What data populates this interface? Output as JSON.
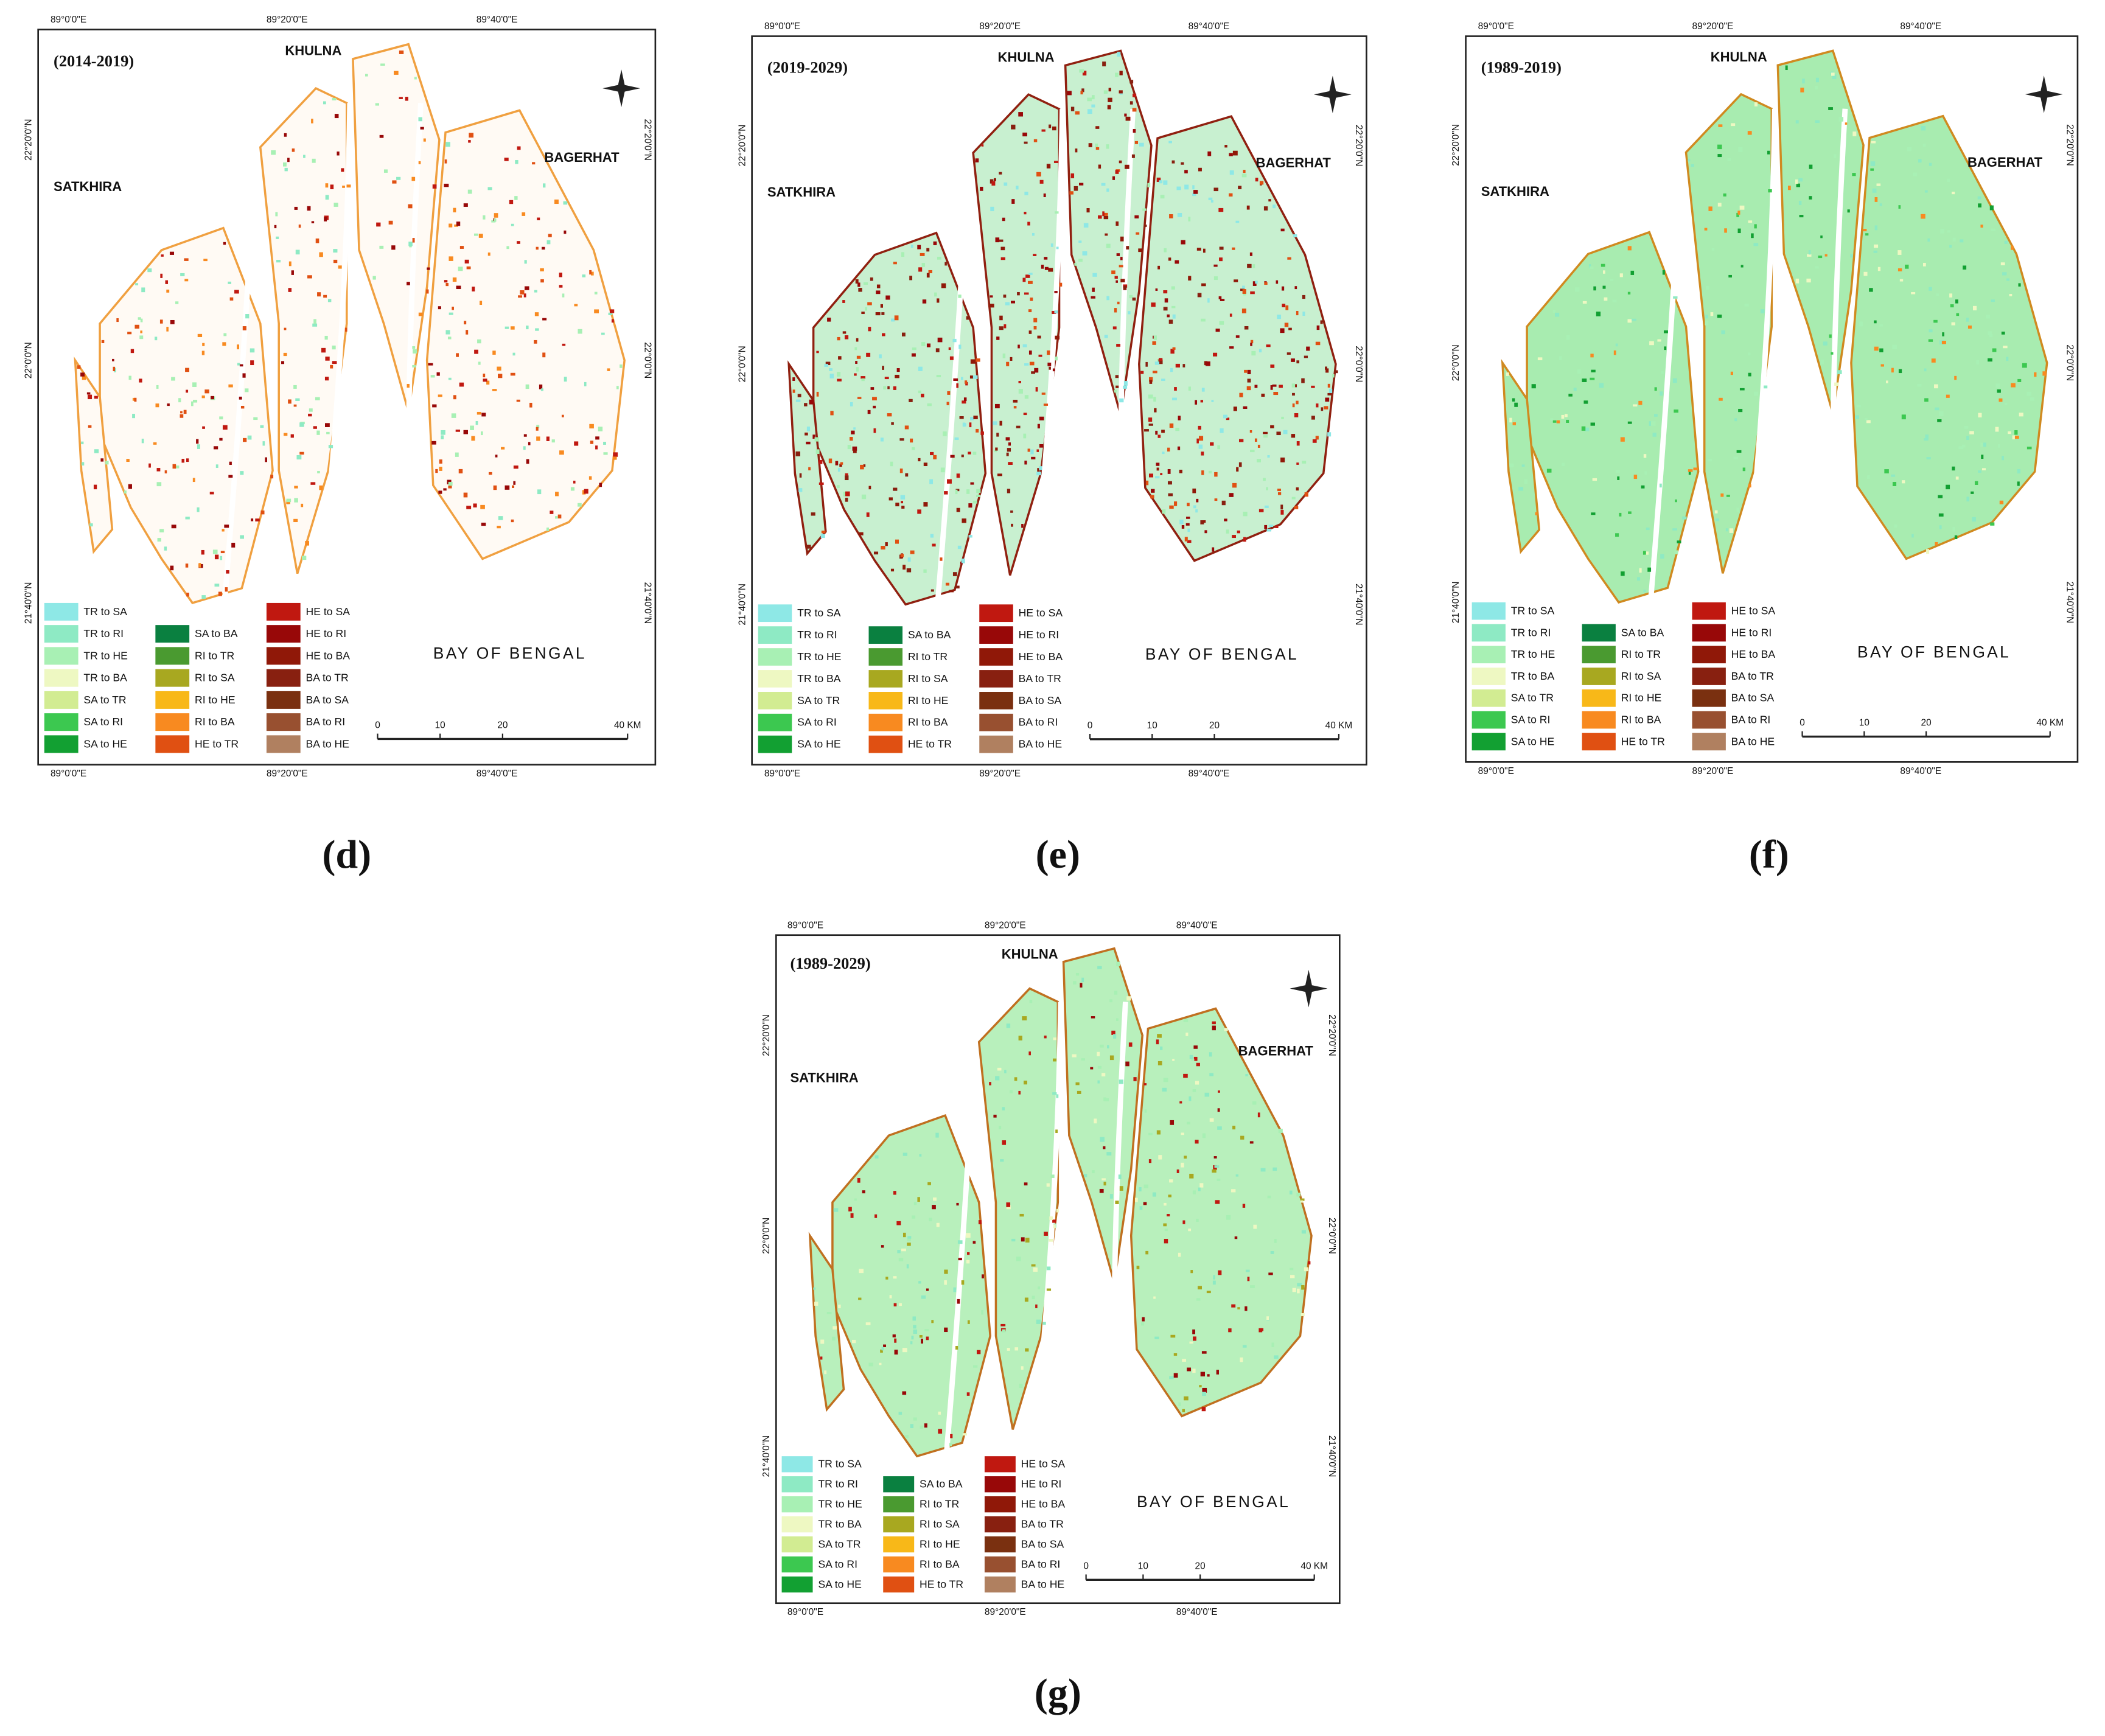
{
  "panels": [
    {
      "period": "(2014-2019)",
      "letter": "(d)"
    },
    {
      "period": "(2019-2029)",
      "letter": "(e)"
    },
    {
      "period": "(1989-2019)",
      "letter": "(f)"
    },
    {
      "period": "(1989-2029)",
      "letter": "(g)"
    }
  ],
  "districts": {
    "north": "KHULNA",
    "west": "SATKHIRA",
    "east": "BAGERHAT"
  },
  "sea_label": "BAY OF BENGAL",
  "longitudes": [
    "89°0'0\"E",
    "89°20'0\"E",
    "89°40'0\"E"
  ],
  "latitudes": [
    "22°20'0\"N",
    "22°0'0\"N",
    "21°40'0\"N"
  ],
  "scale_labels": [
    "0",
    "10",
    "20",
    "40 KM"
  ],
  "legend": [
    {
      "label": "TR to SA",
      "color": "#8ee8e6"
    },
    {
      "label": "TR to RI",
      "color": "#8eeac4"
    },
    {
      "label": "TR to HE",
      "color": "#a8f0b4"
    },
    {
      "label": "TR to BA",
      "color": "#eef8c2"
    },
    {
      "label": "SA to TR",
      "color": "#d2ec92"
    },
    {
      "label": "SA to RI",
      "color": "#3cc850"
    },
    {
      "label": "SA to HE",
      "color": "#12a032"
    },
    {
      "label": "SA to BA",
      "color": "#0a8040"
    },
    {
      "label": "RI to TR",
      "color": "#4a9a30"
    },
    {
      "label": "RI to SA",
      "color": "#a8a820"
    },
    {
      "label": "RI to HE",
      "color": "#f8b818"
    },
    {
      "label": "RI to BA",
      "color": "#f88a20"
    },
    {
      "label": "HE to TR",
      "color": "#e05012"
    },
    {
      "label": "HE to SA",
      "color": "#c01810"
    },
    {
      "label": "HE to RI",
      "color": "#980808"
    },
    {
      "label": "HE to BA",
      "color": "#901808"
    },
    {
      "label": "BA to TR",
      "color": "#882010"
    },
    {
      "label": "BA to SA",
      "color": "#7a3010"
    },
    {
      "label": "BA to RI",
      "color": "#985030"
    },
    {
      "label": "BA to HE",
      "color": "#b08060"
    }
  ]
}
